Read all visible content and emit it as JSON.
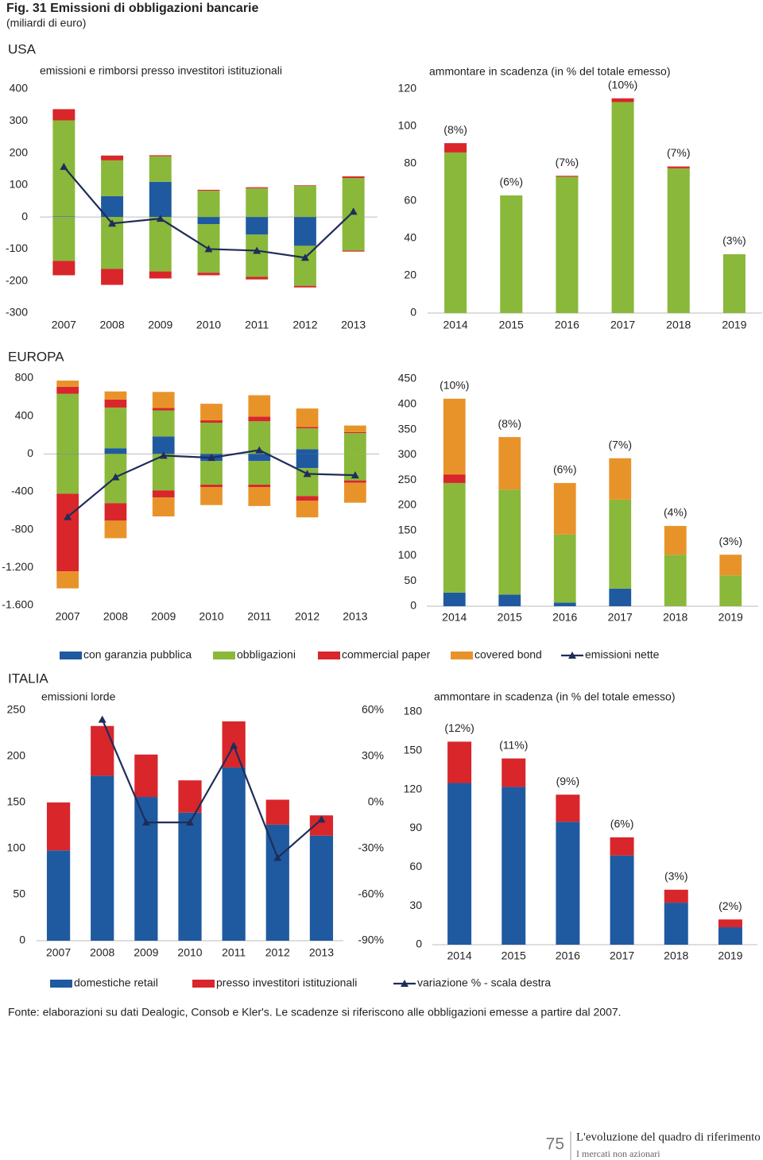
{
  "title": "Fig. 31 Emissioni di obbligazioni bancarie",
  "subtitle": "(miliardi di euro)",
  "sections": [
    "USA",
    "EUROPA",
    "ITALIA"
  ],
  "chart_data": [
    {
      "type": "bar",
      "stacked": true,
      "title": "emissioni e rimborsi presso investitori istituzionali",
      "categories": [
        "2007",
        "2008",
        "2009",
        "2010",
        "2011",
        "2012",
        "2013"
      ],
      "ylim": [
        -300,
        400
      ],
      "yticks": [
        -300,
        -200,
        -100,
        0,
        100,
        200,
        300,
        400
      ],
      "series": [
        {
          "color": "#1f5aa0",
          "values": [
            2,
            65,
            110,
            0,
            0,
            0,
            0
          ]
        },
        {
          "color": "#8ab83a",
          "values": [
            300,
            112,
            80,
            82,
            90,
            97,
            122
          ]
        },
        {
          "color": "#d8262b",
          "values": [
            35,
            15,
            3,
            3,
            3,
            2,
            5
          ]
        },
        {
          "type": "line",
          "color": "#1f2d5a",
          "values": [
            157,
            -20,
            -5,
            -100,
            -105,
            -127,
            17
          ]
        },
        {
          "color": "#1f5aa0",
          "values": [
            0,
            0,
            0,
            -22,
            -55,
            -90,
            0
          ]
        },
        {
          "color": "#8ab83a",
          "values": [
            -137,
            -162,
            -170,
            -152,
            -132,
            -125,
            -105
          ]
        },
        {
          "color": "#d8262b",
          "values": [
            -45,
            -50,
            -22,
            -8,
            -8,
            -5,
            -3
          ]
        }
      ]
    },
    {
      "type": "bar",
      "stacked": true,
      "title": "ammontare in scadenza (in % del totale emesso)",
      "categories": [
        "2014",
        "2015",
        "2016",
        "2017",
        "2018",
        "2019"
      ],
      "ylim": [
        0,
        120
      ],
      "yticks": [
        0,
        20,
        40,
        60,
        80,
        100,
        120
      ],
      "series": [
        {
          "color": "#8ab83a",
          "values": [
            86,
            63,
            73,
            113,
            77.5,
            31.5
          ]
        },
        {
          "color": "#d8262b",
          "values": [
            5,
            0,
            0.5,
            2,
            1,
            0
          ]
        }
      ],
      "annotations": [
        "(8%)",
        "(6%)",
        "(7%)",
        "(10%)",
        "(7%)",
        "(3%)"
      ]
    },
    {
      "type": "bar",
      "stacked": true,
      "categories": [
        "2007",
        "2008",
        "2009",
        "2010",
        "2011",
        "2012",
        "2013"
      ],
      "ylim": [
        -1600,
        800
      ],
      "yticks": [
        {
          "value": -1600,
          "label": "-1.600"
        },
        {
          "value": -1200,
          "label": "-1.200"
        },
        -800,
        -400,
        0,
        400,
        800
      ],
      "series": [
        {
          "name": "con garanzia pubblica",
          "color": "#1f5aa0",
          "values": [
            5,
            60,
            185,
            0,
            0,
            50,
            0
          ]
        },
        {
          "name": "obbligazioni",
          "color": "#8ab83a",
          "values": [
            630,
            430,
            275,
            330,
            345,
            220,
            220
          ]
        },
        {
          "name": "commercial paper",
          "color": "#d8262b",
          "values": [
            75,
            85,
            25,
            25,
            50,
            15,
            10
          ]
        },
        {
          "name": "covered bond",
          "color": "#e8932a",
          "values": [
            65,
            85,
            170,
            175,
            225,
            195,
            70
          ]
        },
        {
          "name": "emissioni nette",
          "type": "line",
          "color": "#1f2d5a",
          "values": [
            -665,
            -245,
            -17,
            -40,
            40,
            -210,
            -225
          ]
        },
        {
          "color": "#1f5aa0",
          "values": [
            0,
            0,
            0,
            -75,
            -75,
            -150,
            0
          ]
        },
        {
          "color": "#8ab83a",
          "values": [
            -420,
            -520,
            -385,
            -250,
            -250,
            -295,
            -280
          ]
        },
        {
          "color": "#d8262b",
          "values": [
            -820,
            -185,
            -75,
            -25,
            -25,
            -50,
            -25
          ]
        },
        {
          "color": "#e8932a",
          "values": [
            -180,
            -185,
            -200,
            -190,
            -200,
            -175,
            -210
          ]
        }
      ]
    },
    {
      "type": "bar",
      "stacked": true,
      "categories": [
        "2014",
        "2015",
        "2016",
        "2017",
        "2018",
        "2019"
      ],
      "ylim": [
        0,
        450
      ],
      "yticks": [
        0,
        50,
        100,
        150,
        200,
        250,
        300,
        350,
        400,
        450
      ],
      "series": [
        {
          "color": "#1f5aa0",
          "values": [
            27,
            23,
            7,
            35,
            0,
            0
          ]
        },
        {
          "color": "#8ab83a",
          "values": [
            217,
            208,
            135,
            176,
            102,
            61
          ]
        },
        {
          "color": "#d8262b",
          "values": [
            17,
            0,
            0,
            0,
            0,
            0
          ]
        },
        {
          "color": "#e8932a",
          "values": [
            150,
            104,
            102,
            82,
            57,
            41
          ]
        }
      ],
      "annotations": [
        "(10%)",
        "(8%)",
        "(6%)",
        "(7%)",
        "(4%)",
        "(3%)"
      ]
    },
    {
      "type": "bar",
      "stacked": true,
      "title": "emissioni lorde",
      "categories": [
        "2007",
        "2008",
        "2009",
        "2010",
        "2011",
        "2012",
        "2013"
      ],
      "ylim": [
        0,
        250
      ],
      "yticks": [
        0,
        50,
        100,
        150,
        200,
        250
      ],
      "y2lim": [
        -90,
        60
      ],
      "y2ticks": [
        {
          "value": -90,
          "label": "-90%"
        },
        {
          "value": -60,
          "label": "-60%"
        },
        {
          "value": -30,
          "label": "-30%"
        },
        {
          "value": 0,
          "label": "0%"
        },
        {
          "value": 30,
          "label": "30%"
        },
        {
          "value": 60,
          "label": "60%"
        }
      ],
      "series": [
        {
          "name": "domestiche retail",
          "color": "#1f5aa0",
          "values": [
            98,
            179,
            156,
            139,
            188,
            126,
            114
          ]
        },
        {
          "name": "presso investitori istituzionali",
          "color": "#d8262b",
          "values": [
            52,
            54,
            46,
            35,
            50,
            27,
            22
          ]
        },
        {
          "name": "variazione % - scala destra",
          "type": "line",
          "axis": "y2",
          "color": "#1f2d5a",
          "values": [
            null,
            54,
            -13,
            -13,
            37,
            -36,
            -11
          ]
        }
      ]
    },
    {
      "type": "bar",
      "stacked": true,
      "title": "ammontare in scadenza (in % del totale emesso)",
      "categories": [
        "2014",
        "2015",
        "2016",
        "2017",
        "2018",
        "2019"
      ],
      "ylim": [
        0,
        180
      ],
      "yticks": [
        0,
        30,
        60,
        90,
        120,
        150,
        180
      ],
      "series": [
        {
          "color": "#1f5aa0",
          "values": [
            125,
            122,
            95,
            69,
            32.5,
            13.5
          ]
        },
        {
          "color": "#d8262b",
          "values": [
            32,
            22,
            21,
            14,
            10,
            6
          ]
        }
      ],
      "annotations": [
        "(12%)",
        "(11%)",
        "(9%)",
        "(6%)",
        "(3%)",
        "(2%)"
      ]
    }
  ],
  "note": "Fonte: elaborazioni su dati Dealogic, Consob e Kler's. Le scadenze si riferiscono alle obbligazioni emesse a partire dal 2007.",
  "footer": {
    "page": 75,
    "chapter": "L'evoluzione del quadro di riferimento",
    "section": "I mercati non azionari"
  }
}
